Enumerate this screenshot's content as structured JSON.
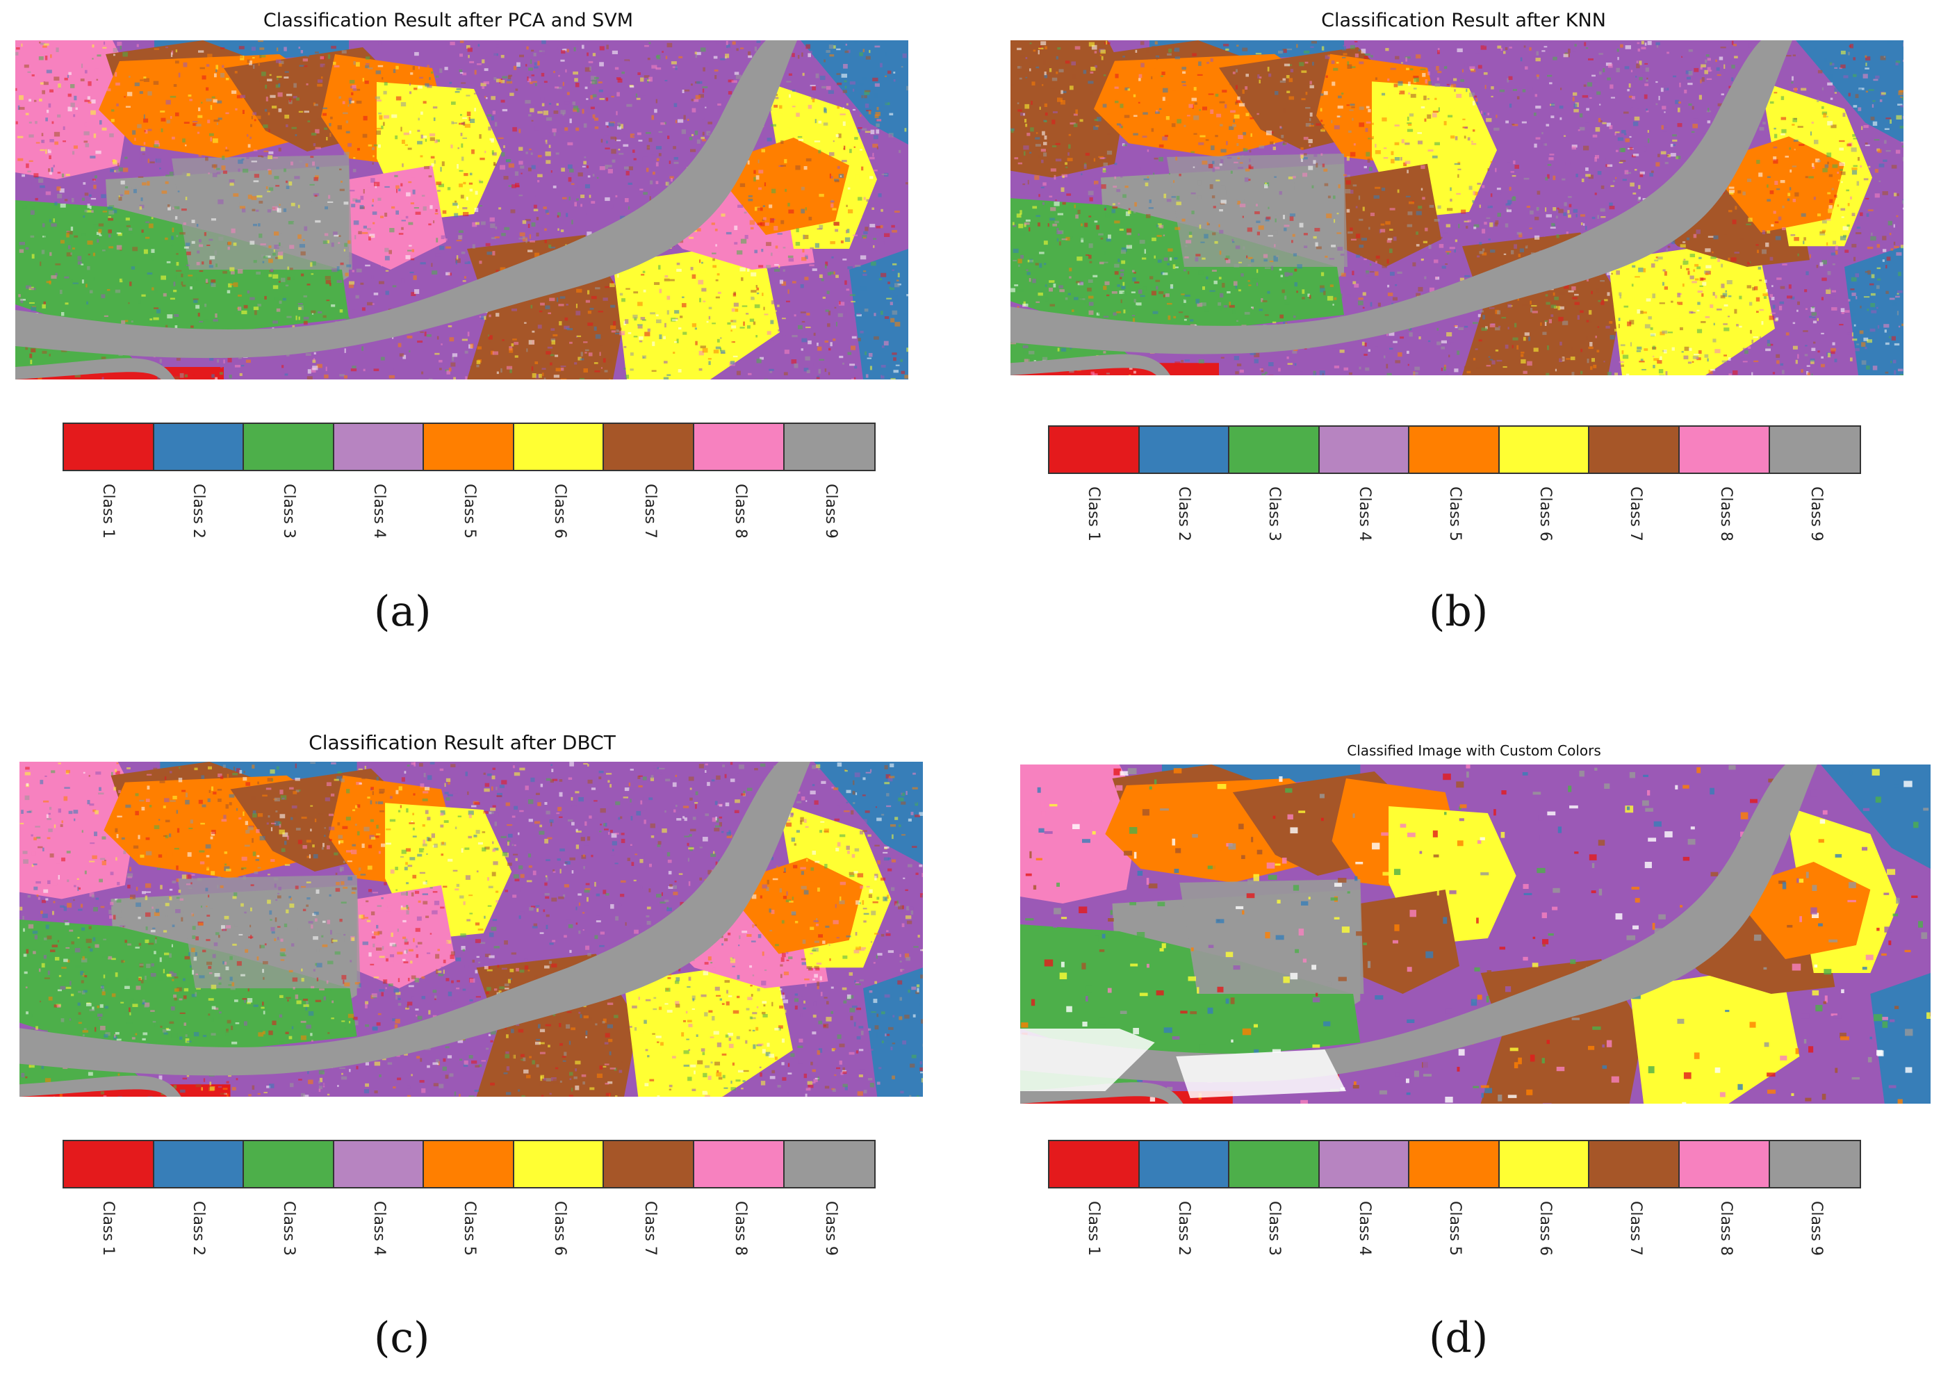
{
  "panels": [
    {
      "id": "a",
      "title": "Classification Result after PCA and SVM",
      "sublabel": "(a)"
    },
    {
      "id": "b",
      "title": "Classification Result after KNN",
      "sublabel": "(b)"
    },
    {
      "id": "c",
      "title": "Classification Result after DBCT",
      "sublabel": "(c)"
    },
    {
      "id": "d",
      "title": "Classified Image with Custom Colors",
      "sublabel": "(d)"
    }
  ],
  "legend": {
    "classes": [
      {
        "label": "Class 1",
        "color": "#e41a1c"
      },
      {
        "label": "Class 2",
        "color": "#377eb8"
      },
      {
        "label": "Class 3",
        "color": "#4daf4a"
      },
      {
        "label": "Class 4",
        "color": "#b784c1"
      },
      {
        "label": "Class 5",
        "color": "#ff7f00"
      },
      {
        "label": "Class 6",
        "color": "#ffff33"
      },
      {
        "label": "Class 7",
        "color": "#a65628"
      },
      {
        "label": "Class 8",
        "color": "#f781bf"
      },
      {
        "label": "Class 9",
        "color": "#999999"
      }
    ]
  }
}
